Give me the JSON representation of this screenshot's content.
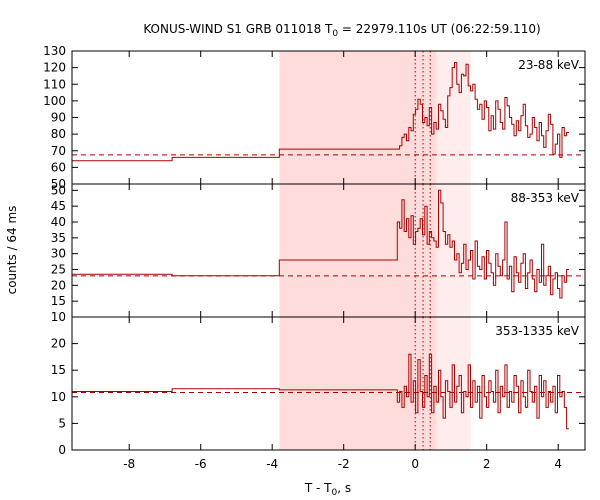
{
  "chart_data": {
    "type": "line",
    "title": "KONUS-WIND S1 GRB 011018 T",
    "title_sub": "0",
    "title_rest": " = 22979.110s UT (06:22:59.110)",
    "xlabel": "T - T",
    "xlabel_sub": "0",
    "xlabel_rest": ", s",
    "ylabel": "counts / 64 ms",
    "xlim": [
      -9.6,
      4.75
    ],
    "x_ticks": [
      -8,
      -6,
      -4,
      -2,
      0,
      2,
      4
    ],
    "x_tick_labels": [
      "-8",
      "-6",
      "-4",
      "-2",
      "0",
      "2",
      "4"
    ],
    "shaded_regions": [
      {
        "from": -3.8,
        "to": 0.6,
        "color": "#ffdcdc"
      },
      {
        "from": 0.6,
        "to": 1.55,
        "color": "#ffecec"
      }
    ],
    "vertical_markers": [
      0.0,
      0.22,
      0.42
    ],
    "line_color": "#a80000",
    "panels": [
      {
        "label": "23-88 keV",
        "ylim": [
          50,
          130
        ],
        "y_ticks": [
          50,
          60,
          70,
          80,
          90,
          100,
          110,
          120,
          130
        ],
        "y_tick_labels": [
          "50",
          "60",
          "70",
          "80",
          "90",
          "100",
          "110",
          "120",
          "130"
        ],
        "background_level": 67.5,
        "coarse_steps": [
          [
            -9.6,
            64
          ],
          [
            -6.8,
            66
          ],
          [
            -3.8,
            71
          ],
          [
            -0.5,
            71
          ]
        ],
        "fine_x_start": -0.5,
        "fine_values": [
          71,
          73,
          78,
          80,
          76,
          84,
          82,
          92,
          95,
          101,
          98,
          87,
          90,
          85,
          96,
          80,
          87,
          83,
          98,
          94,
          89,
          84,
          103,
          108,
          120,
          123,
          110,
          105,
          116,
          115,
          122,
          109,
          106,
          110,
          101,
          95,
          98,
          89,
          100,
          96,
          82,
          91,
          83,
          100,
          95,
          87,
          83,
          102,
          97,
          90,
          86,
          79,
          88,
          82,
          91,
          98,
          85,
          78,
          80,
          90,
          84,
          76,
          87,
          79,
          72,
          82,
          92,
          86,
          68,
          74,
          80,
          66,
          84,
          79,
          81
        ]
      },
      {
        "label": "88-353 keV",
        "ylim": [
          10,
          52
        ],
        "y_ticks": [
          10,
          15,
          20,
          25,
          30,
          35,
          40,
          45,
          50
        ],
        "y_tick_labels": [
          "10",
          "15",
          "20",
          "25",
          "30",
          "35",
          "40",
          "45",
          "50"
        ],
        "background_level": 23.0,
        "coarse_steps": [
          [
            -9.6,
            23.5
          ],
          [
            -6.8,
            23
          ],
          [
            -3.8,
            28
          ],
          [
            -0.5,
            28
          ]
        ],
        "fine_x_start": -0.5,
        "fine_values": [
          40,
          38,
          47,
          37,
          41,
          35,
          42,
          33,
          37,
          38,
          41,
          36,
          45,
          33,
          37,
          35,
          34,
          32,
          50,
          46,
          37,
          33,
          36,
          32,
          34,
          28,
          30,
          24,
          27,
          33,
          25,
          28,
          31,
          22,
          34,
          26,
          25,
          29,
          22,
          31,
          27,
          24,
          20,
          30,
          26,
          23,
          28,
          40,
          22,
          26,
          18,
          29,
          24,
          21,
          27,
          30,
          19,
          24,
          28,
          22,
          18,
          25,
          21,
          33,
          20,
          23,
          26,
          17,
          22,
          24,
          19,
          16,
          23,
          21,
          25
        ]
      },
      {
        "label": "353-1335 keV",
        "ylim": [
          0,
          25
        ],
        "y_ticks": [
          0,
          5,
          10,
          15,
          20
        ],
        "y_tick_labels": [
          "0",
          "5",
          "10",
          "15",
          "20"
        ],
        "background_level": 10.8,
        "coarse_steps": [
          [
            -9.6,
            11
          ],
          [
            -6.8,
            11.5
          ],
          [
            -3.8,
            11.3
          ],
          [
            -0.5,
            11.3
          ]
        ],
        "fine_x_start": -0.5,
        "fine_values": [
          9,
          11,
          8,
          12,
          10,
          18,
          9,
          13,
          7,
          17,
          11,
          8,
          14,
          10,
          18,
          7,
          12,
          9,
          15,
          10,
          6,
          13,
          11,
          8,
          16,
          9,
          12,
          14,
          7,
          11,
          10,
          16,
          8,
          13,
          9,
          12,
          6,
          14,
          10,
          8,
          13,
          11,
          9,
          15,
          7,
          12,
          10,
          16,
          8,
          11,
          9,
          14,
          12,
          7,
          13,
          10,
          8,
          15,
          11,
          9,
          12,
          6,
          14,
          10,
          13,
          8,
          11,
          9,
          12,
          7,
          14,
          10,
          11,
          8,
          4
        ]
      }
    ]
  }
}
